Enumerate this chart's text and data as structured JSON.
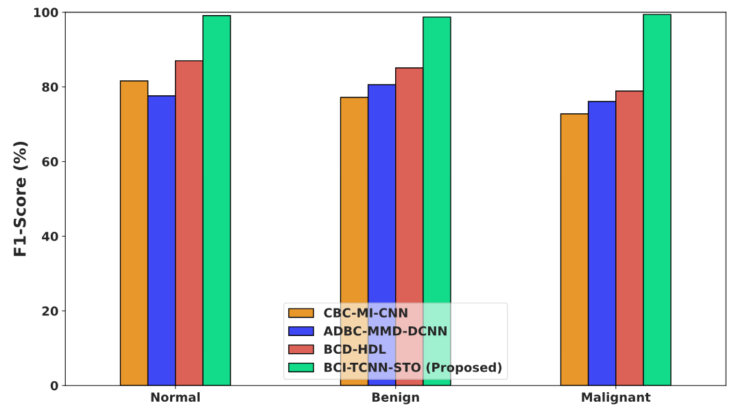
{
  "chart_data": {
    "type": "bar",
    "ylabel": "F1-Score (%)",
    "categories": [
      "Normal",
      "Benign",
      "Malignant"
    ],
    "series": [
      {
        "name": "CBC-MI-CNN",
        "color": "#e8972a",
        "values": [
          81.6,
          77.2,
          72.8
        ]
      },
      {
        "name": "ADBC-MMD-DCNN",
        "color": "#3f48f5",
        "values": [
          77.6,
          80.6,
          76.1
        ]
      },
      {
        "name": "BCD-HDL",
        "color": "#dc6258",
        "values": [
          87.0,
          85.1,
          78.9
        ]
      },
      {
        "name": "BCI-TCNN-STO (Proposed)",
        "color": "#12dc8a",
        "values": [
          99.1,
          98.7,
          99.4
        ]
      }
    ],
    "ylim": [
      0,
      100
    ],
    "yticks": [
      0,
      20,
      40,
      60,
      80,
      100
    ],
    "grid": false,
    "legend": "bottom"
  }
}
